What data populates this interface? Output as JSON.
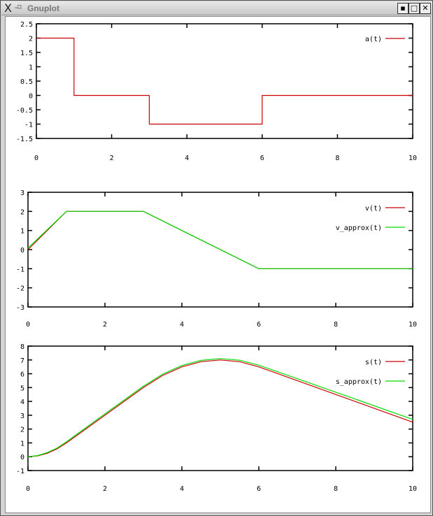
{
  "window": {
    "title": "Gnuplot",
    "buttons": [
      "minimize",
      "maximize",
      "close"
    ]
  },
  "chart_data": [
    {
      "type": "line",
      "xlim": [
        0,
        10
      ],
      "ylim": [
        -1.5,
        2.5
      ],
      "xticks": [
        "0",
        "2",
        "4",
        "6",
        "8",
        "10"
      ],
      "yticks": [
        "-1.5",
        "-1",
        "-0.5",
        "0",
        "0.5",
        "1",
        "1.5",
        "2",
        "2.5"
      ],
      "legend_position": "top-right",
      "series": [
        {
          "name": "a(t)",
          "color": "#cc0000",
          "points": [
            [
              0,
              2
            ],
            [
              1,
              2
            ],
            [
              1,
              0
            ],
            [
              3,
              0
            ],
            [
              3,
              -1
            ],
            [
              6,
              -1
            ],
            [
              6,
              0
            ],
            [
              10,
              0
            ]
          ]
        }
      ]
    },
    {
      "type": "line",
      "xlim": [
        0,
        10
      ],
      "ylim": [
        -3,
        3
      ],
      "xticks": [
        "0",
        "2",
        "4",
        "6",
        "8",
        "10"
      ],
      "yticks": [
        "-3",
        "-2",
        "-1",
        "0",
        "1",
        "2",
        "3"
      ],
      "legend_position": "top-right",
      "series": [
        {
          "name": "v(t)",
          "color": "#cc0000",
          "points": [
            [
              0,
              0
            ],
            [
              1,
              2
            ],
            [
              3,
              2
            ],
            [
              6,
              -1
            ],
            [
              10,
              -1
            ]
          ]
        },
        {
          "name": "v_approx(t)",
          "color": "#00dd00",
          "points": [
            [
              0,
              0.08
            ],
            [
              1,
              2
            ],
            [
              3,
              2
            ],
            [
              6,
              -1
            ],
            [
              10,
              -1
            ]
          ]
        }
      ]
    },
    {
      "type": "line",
      "xlim": [
        0,
        10
      ],
      "ylim": [
        -1,
        8
      ],
      "xticks": [
        "0",
        "2",
        "4",
        "6",
        "8",
        "10"
      ],
      "yticks": [
        "-1",
        "0",
        "1",
        "2",
        "3",
        "4",
        "5",
        "6",
        "7",
        "8"
      ],
      "legend_position": "top-right",
      "series": [
        {
          "name": "s(t)",
          "color": "#cc0000",
          "points": [
            [
              0,
              0
            ],
            [
              0.25,
              0.0625
            ],
            [
              0.5,
              0.25
            ],
            [
              0.75,
              0.5625
            ],
            [
              1,
              1
            ],
            [
              2,
              3
            ],
            [
              3,
              5
            ],
            [
              3.5,
              5.875
            ],
            [
              4,
              6.5
            ],
            [
              4.5,
              6.875
            ],
            [
              5,
              7
            ],
            [
              5.5,
              6.875
            ],
            [
              6,
              6.5
            ],
            [
              8,
              4.5
            ],
            [
              10,
              2.5
            ]
          ]
        },
        {
          "name": "s_approx(t)",
          "color": "#00dd00",
          "points": [
            [
              0,
              0
            ],
            [
              0.25,
              0.08
            ],
            [
              0.5,
              0.3
            ],
            [
              0.75,
              0.62
            ],
            [
              1,
              1.08
            ],
            [
              2,
              3.1
            ],
            [
              3,
              5.1
            ],
            [
              3.5,
              5.97
            ],
            [
              4,
              6.6
            ],
            [
              4.5,
              6.97
            ],
            [
              5,
              7.1
            ],
            [
              5.5,
              6.98
            ],
            [
              6,
              6.62
            ],
            [
              8,
              4.67
            ],
            [
              10,
              2.7
            ]
          ]
        }
      ]
    }
  ]
}
